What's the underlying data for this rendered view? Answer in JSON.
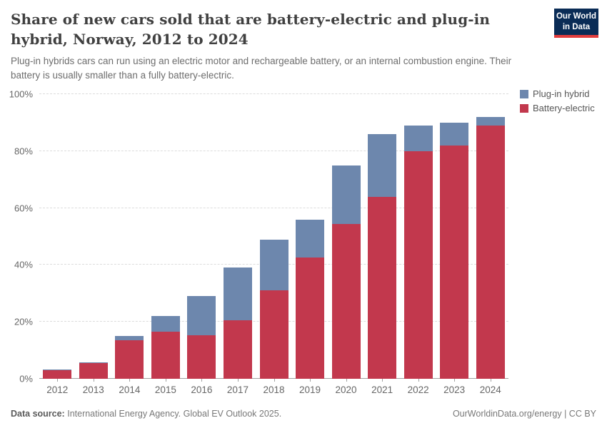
{
  "header": {
    "title": "Share of new cars sold that are battery-electric and plug-in hybrid, Norway, 2012 to 2024",
    "subtitle": "Plug-in hybrids cars can run using an electric motor and rechargeable battery, or an internal combustion engine. Their battery is usually smaller than a fully battery-electric.",
    "logo": {
      "line1": "Our World",
      "line2": "in Data",
      "bg": "#0a2c56",
      "accent": "#e23d3d"
    }
  },
  "chart_data": {
    "type": "bar",
    "stacked": true,
    "title": "Share of new cars sold that are battery-electric and plug-in hybrid, Norway, 2012 to 2024",
    "categories": [
      "2012",
      "2013",
      "2014",
      "2015",
      "2016",
      "2017",
      "2018",
      "2019",
      "2020",
      "2021",
      "2022",
      "2023",
      "2024"
    ],
    "series": [
      {
        "name": "Plug-in hybrid",
        "color": "#6d87ad",
        "values": [
          0.2,
          0.3,
          1.5,
          5.5,
          13.7,
          18.5,
          18,
          13.5,
          20.5,
          22,
          9,
          8,
          3
        ]
      },
      {
        "name": "Battery-electric",
        "color": "#c2384d",
        "values": [
          3,
          5.5,
          13.5,
          16.5,
          15.3,
          20.5,
          31,
          42.5,
          54.5,
          64,
          80,
          82,
          89
        ]
      }
    ],
    "stack_order": [
      "Battery-electric",
      "Plug-in hybrid"
    ],
    "stacked_totals": [
      3.2,
      5.8,
      15,
      22,
      29,
      39,
      49,
      56,
      75,
      86,
      89,
      90,
      92
    ],
    "xlabel": "",
    "ylabel": "",
    "ylim": [
      0,
      100
    ],
    "yticks": [
      {
        "value": 0,
        "label": "0%"
      },
      {
        "value": 20,
        "label": "20%"
      },
      {
        "value": 40,
        "label": "40%"
      },
      {
        "value": 60,
        "label": "60%"
      },
      {
        "value": 80,
        "label": "80%"
      },
      {
        "value": 100,
        "label": "100%"
      }
    ],
    "grid": "horizontal-dashed",
    "legend_position": "top-right"
  },
  "footer": {
    "source_label": "Data source:",
    "source_text": "International Energy Agency. Global EV Outlook 2025.",
    "link": "OurWorldinData.org/energy",
    "separator": "|",
    "license": "CC BY"
  }
}
